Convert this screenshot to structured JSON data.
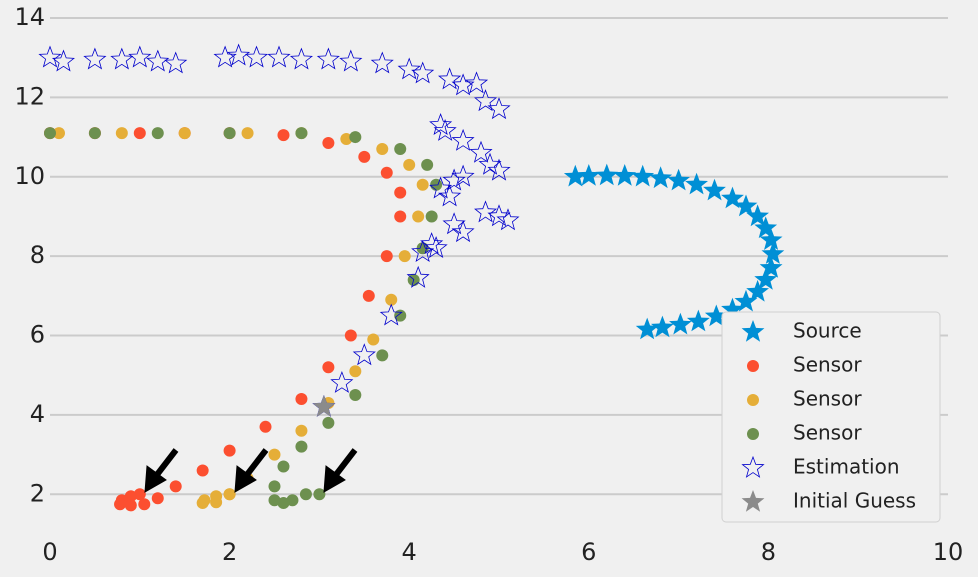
{
  "chart_data": {
    "type": "scatter",
    "xlim": [
      0,
      10
    ],
    "xticks": [
      0,
      2,
      4,
      6,
      8,
      10
    ],
    "ylim": [
      1.1,
      14
    ],
    "yticks": [
      2,
      4,
      6,
      8,
      10,
      12,
      14
    ],
    "grid": true,
    "legend": "lower right",
    "series": [
      {
        "name": "Source",
        "color": "#008fd5",
        "marker": "star",
        "x": [
          5.85,
          6.0,
          6.2,
          6.4,
          6.6,
          6.8,
          7.0,
          7.2,
          7.4,
          7.6,
          7.75,
          7.88,
          7.97,
          8.03,
          8.05,
          8.03,
          7.97,
          7.88,
          7.75,
          7.6,
          7.42,
          7.22,
          7.02,
          6.82,
          6.65
        ],
        "y": [
          10.0,
          10.02,
          10.03,
          10.02,
          10.0,
          9.96,
          9.9,
          9.8,
          9.65,
          9.45,
          9.25,
          9.0,
          8.7,
          8.4,
          8.05,
          7.7,
          7.4,
          7.1,
          6.85,
          6.65,
          6.48,
          6.35,
          6.27,
          6.2,
          6.15
        ]
      },
      {
        "name": "Sensor",
        "color": "#fc4f30",
        "marker": "circle",
        "x": [
          1.0,
          0.9,
          0.8,
          0.78,
          0.9,
          1.05,
          1.2,
          1.4,
          1.7,
          2.0,
          2.4,
          2.8,
          3.1,
          3.35,
          3.55,
          3.75,
          3.9,
          3.9,
          3.75,
          3.5,
          3.1,
          2.6,
          2.0,
          1.5,
          1.0,
          0.5,
          0.0
        ],
        "y": [
          2.0,
          1.95,
          1.85,
          1.75,
          1.72,
          1.75,
          1.9,
          2.2,
          2.6,
          3.1,
          3.7,
          4.4,
          5.2,
          6.0,
          7.0,
          8.0,
          9.0,
          9.6,
          10.1,
          10.5,
          10.85,
          11.05,
          11.1,
          11.1,
          11.1,
          11.1,
          11.1
        ]
      },
      {
        "name": "Sensor",
        "color": "#e5ae38",
        "marker": "circle",
        "x": [
          2.0,
          1.85,
          1.72,
          1.7,
          1.85,
          2.0,
          2.2,
          2.5,
          2.8,
          3.1,
          3.4,
          3.6,
          3.8,
          3.95,
          4.1,
          4.15,
          4.0,
          3.7,
          3.3,
          2.8,
          2.2,
          1.5,
          0.8,
          0.1
        ],
        "y": [
          2.0,
          1.95,
          1.85,
          1.78,
          1.8,
          2.0,
          2.4,
          3.0,
          3.6,
          4.3,
          5.1,
          5.9,
          6.9,
          8.0,
          9.0,
          9.8,
          10.3,
          10.7,
          10.95,
          11.1,
          11.1,
          11.1,
          11.1,
          11.1
        ]
      },
      {
        "name": "Sensor",
        "color": "#6d904f",
        "marker": "circle",
        "x": [
          3.0,
          2.85,
          2.7,
          2.6,
          2.5,
          2.5,
          2.6,
          2.8,
          3.1,
          3.4,
          3.7,
          3.9,
          4.05,
          4.15,
          4.25,
          4.3,
          4.2,
          3.9,
          3.4,
          2.8,
          2.0,
          1.2,
          0.5,
          0.0
        ],
        "y": [
          2.0,
          2.0,
          1.85,
          1.78,
          1.85,
          2.2,
          2.7,
          3.2,
          3.8,
          4.5,
          5.5,
          6.5,
          7.4,
          8.2,
          9.0,
          9.8,
          10.3,
          10.7,
          11.0,
          11.1,
          11.1,
          11.1,
          11.1,
          11.1
        ]
      },
      {
        "name": "Estimation",
        "color": "#0000cc",
        "marker": "open-star",
        "x": [
          0.0,
          0.15,
          0.5,
          0.8,
          1.0,
          1.2,
          1.4,
          1.95,
          2.1,
          2.3,
          2.55,
          2.8,
          3.1,
          3.35,
          3.7,
          4.0,
          4.15,
          4.45,
          4.6,
          4.75,
          4.85,
          5.0,
          4.35,
          4.4,
          4.6,
          4.8,
          4.9,
          5.0,
          4.5,
          4.6,
          4.35,
          4.45,
          4.85,
          5.0,
          5.1,
          4.5,
          4.6,
          4.25,
          4.15,
          4.3,
          4.1,
          3.8,
          3.5,
          3.25,
          3.05
        ],
        "y": [
          13.0,
          12.9,
          12.95,
          12.95,
          13.0,
          12.9,
          12.85,
          13.0,
          13.05,
          13.0,
          13.0,
          12.95,
          12.95,
          12.9,
          12.85,
          12.7,
          12.6,
          12.45,
          12.3,
          12.35,
          11.9,
          11.7,
          11.3,
          11.15,
          10.9,
          10.6,
          10.3,
          10.15,
          9.9,
          10.0,
          9.7,
          9.5,
          9.1,
          9.0,
          8.9,
          8.8,
          8.6,
          8.3,
          8.1,
          8.2,
          7.45,
          6.5,
          5.5,
          4.8,
          4.2
        ]
      },
      {
        "name": "Initial Guess",
        "color": "#8b8b8b",
        "marker": "star",
        "x": [
          3.05
        ],
        "y": [
          4.2
        ]
      }
    ]
  }
}
